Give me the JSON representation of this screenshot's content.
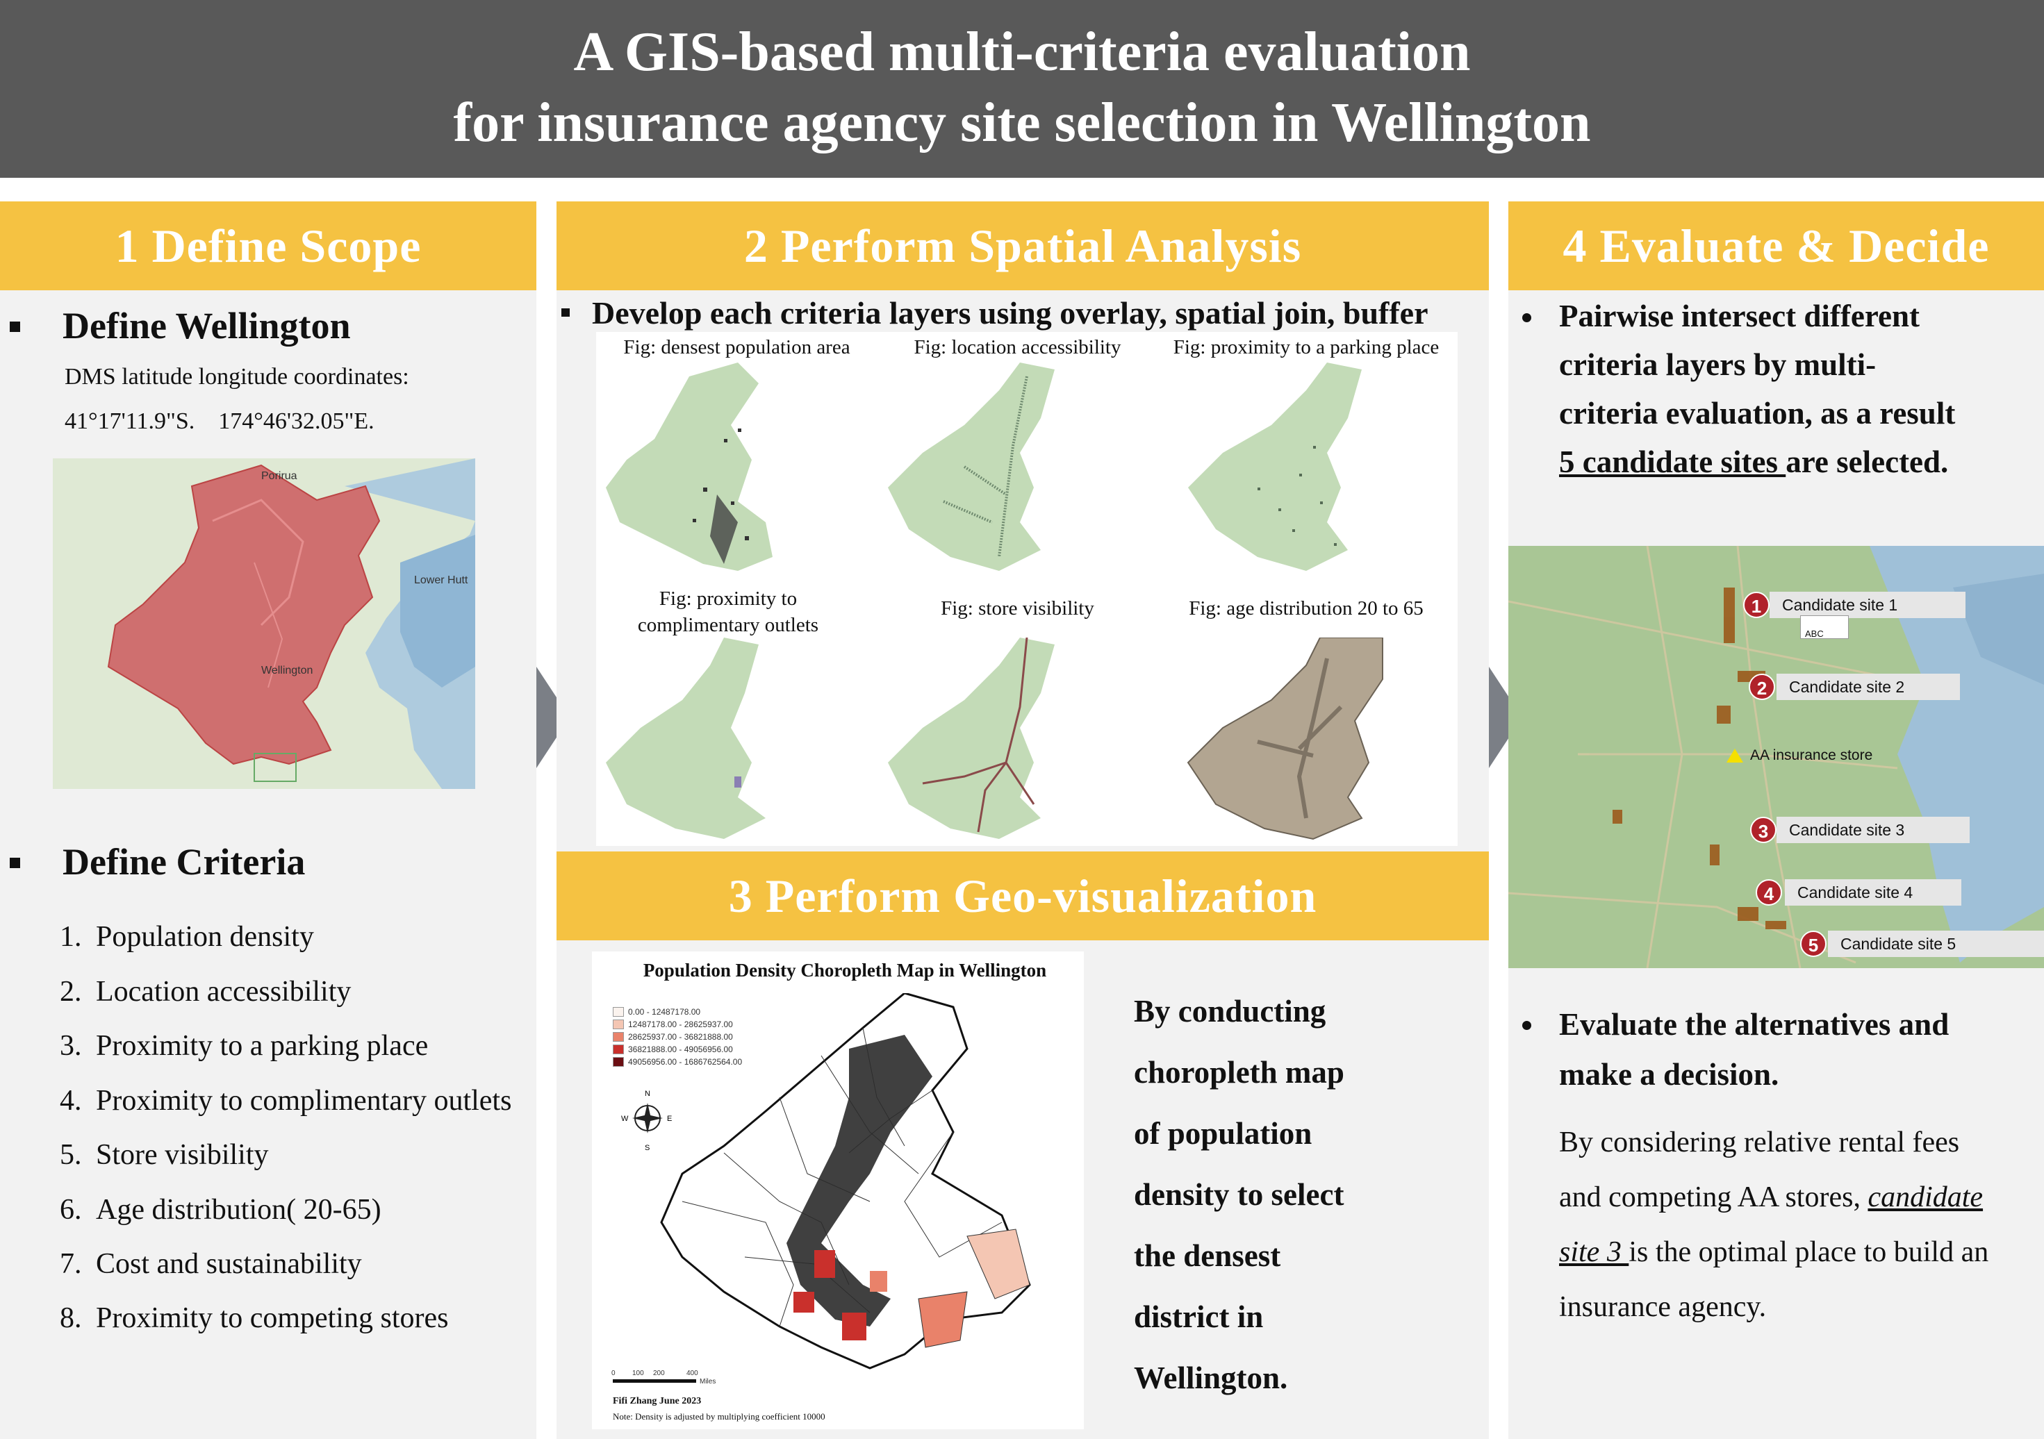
{
  "title": {
    "line1": "A GIS-based multi-criteria evaluation",
    "line2": "for insurance agency site selection in Wellington"
  },
  "step1": {
    "header": "1 Define Scope",
    "define_wellington": "Define Wellington",
    "coords_label": "DMS latitude longitude coordinates:",
    "coords_value": "41°17'11.9\"S.    174°46'32.05\"E.",
    "map_labels": {
      "porirua": "Porirua",
      "lower_hutt": "Lower Hutt",
      "wellington": "Wellington"
    },
    "define_criteria": "Define Criteria",
    "criteria": [
      {
        "num": "1.",
        "label": "Population density"
      },
      {
        "num": "2.",
        "label": "Location accessibility"
      },
      {
        "num": "3.",
        "label": "Proximity to a parking place"
      },
      {
        "num": "4.",
        "label": "Proximity to complimentary outlets"
      },
      {
        "num": "5.",
        "label": "Store visibility"
      },
      {
        "num": "6.",
        "label": "Age distribution( 20-65)"
      },
      {
        "num": "7.",
        "label": "Cost and sustainability"
      },
      {
        "num": "8.",
        "label": "Proximity to competing stores"
      }
    ]
  },
  "step2": {
    "header": "2 Perform Spatial Analysis",
    "bullet": "Develop each criteria layers using overlay, spatial join, buffer",
    "figures": [
      {
        "caption": "Fig: densest population area"
      },
      {
        "caption": "Fig: location accessibility"
      },
      {
        "caption": "Fig: proximity to a parking place"
      },
      {
        "caption_l1": "Fig: proximity to",
        "caption_l2": "complimentary outlets"
      },
      {
        "caption": "Fig: store visibility"
      },
      {
        "caption": "Fig: age distribution 20 to 65"
      }
    ]
  },
  "step3": {
    "header": "3 Perform Geo-visualization",
    "map_title": "Population Density Choropleth Map in Wellington",
    "legend": [
      {
        "label": "0.00 - 12487178.00",
        "color": "#fbf3ee"
      },
      {
        "label": "12487178.00 - 28625937.00",
        "color": "#f4c6b3"
      },
      {
        "label": "28625937.00 - 36821888.00",
        "color": "#e9826a"
      },
      {
        "label": "36821888.00 - 49056956.00",
        "color": "#c9302c"
      },
      {
        "label": "49056956.00 - 1686762564.00",
        "color": "#6b0e13"
      }
    ],
    "compass": {
      "n": "N",
      "s": "S",
      "e": "E",
      "w": "W"
    },
    "scale_ticks": [
      "0",
      "100",
      "200",
      "400"
    ],
    "scale_unit": "Miles",
    "author": "Fifi Zhang June 2023",
    "note": "Note: Density is adjusted by multiplying coefficient 10000",
    "text_lines": [
      "By conducting",
      "choropleth map",
      "of population",
      "density to select",
      "the densest",
      "district in",
      "Wellington."
    ]
  },
  "step4": {
    "header": "4 Evaluate & Decide",
    "bullet1_lines": [
      "Pairwise intersect different",
      "criteria layers by multi-",
      "criteria evaluation, as a result"
    ],
    "bullet1_underlined": "5 candidate sites ",
    "bullet1_tail": "are selected.",
    "candidates": [
      {
        "num": "1",
        "label": "Candidate site 1"
      },
      {
        "num": "2",
        "label": "Candidate site 2"
      },
      {
        "num": "3",
        "label": "Candidate site 3"
      },
      {
        "num": "4",
        "label": "Candidate site 4"
      },
      {
        "num": "5",
        "label": "Candidate site 5"
      }
    ],
    "aa_store": "AA insurance store",
    "map_small_label": "ABC",
    "bullet2_lines": [
      "Evaluate the alternatives and",
      "make a decision."
    ],
    "para_l1": "By considering relative rental fees",
    "para_l2_a": "and competing AA stores, ",
    "para_l2_u": "candidate",
    "para_l3_u": "site 3 ",
    "para_l3_b": "is the optimal place to build an",
    "para_l4": "insurance agency."
  },
  "colors": {
    "title_bg": "#595959",
    "header_bg": "#f5c242",
    "panel_bg": "#f2f2f2",
    "map_green": "#c3dbb7",
    "wellington_red": "#d07070",
    "candidate_red": "#b0222a"
  }
}
